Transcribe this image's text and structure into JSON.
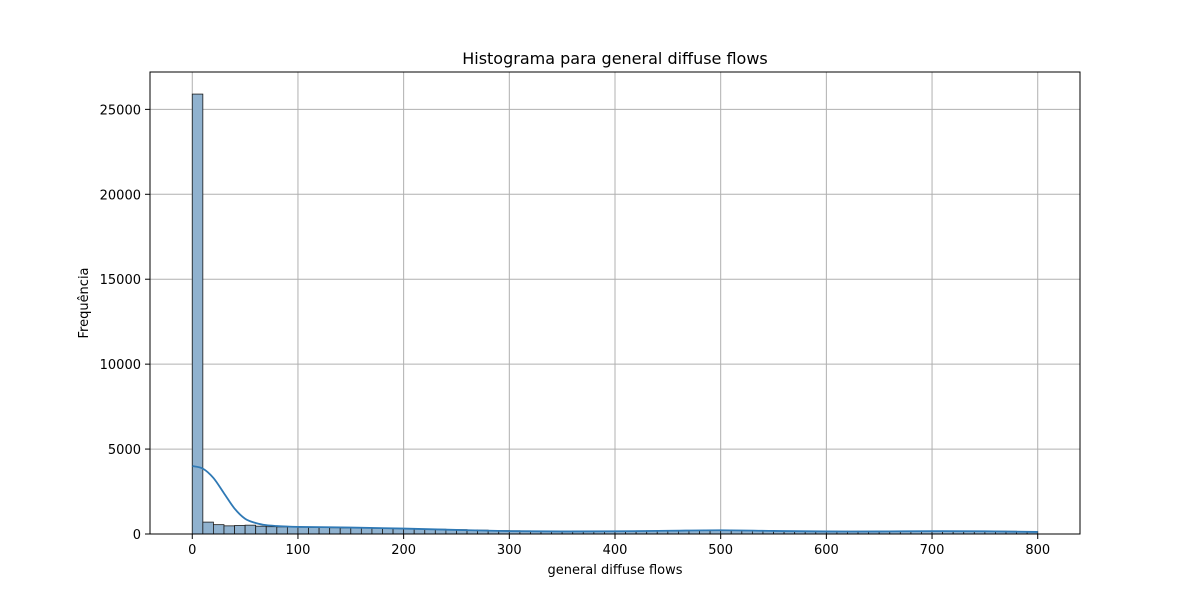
{
  "chart_data": {
    "type": "bar",
    "title": "Histograma para general diffuse flows",
    "xlabel": "general diffuse flows",
    "ylabel": "Frequência",
    "xlim": [
      -40,
      840
    ],
    "ylim": [
      0,
      27200
    ],
    "xticks": [
      0,
      100,
      200,
      300,
      400,
      500,
      600,
      700,
      800
    ],
    "yticks": [
      0,
      5000,
      10000,
      15000,
      20000,
      25000
    ],
    "grid": true,
    "bin_start": 0,
    "bin_width": 10,
    "bin_counts": [
      25900,
      700,
      550,
      480,
      500,
      520,
      460,
      430,
      420,
      410,
      400,
      390,
      380,
      370,
      360,
      355,
      350,
      340,
      330,
      320,
      310,
      300,
      290,
      280,
      270,
      255,
      240,
      225,
      210,
      200,
      190,
      185,
      180,
      175,
      170,
      170,
      170,
      170,
      170,
      175,
      180,
      180,
      185,
      190,
      195,
      200,
      205,
      210,
      210,
      210,
      205,
      200,
      195,
      190,
      185,
      180,
      175,
      170,
      170,
      165,
      165,
      160,
      160,
      160,
      160,
      160,
      160,
      165,
      165,
      170,
      170,
      175,
      175,
      175,
      175,
      170,
      165,
      160,
      150,
      140
    ],
    "kde": {
      "x": [
        0,
        10,
        20,
        30,
        40,
        50,
        60,
        70,
        80,
        90,
        100,
        150,
        200,
        250,
        300,
        350,
        400,
        450,
        500,
        550,
        600,
        650,
        700,
        750,
        800
      ],
      "y": [
        4000,
        3850,
        3300,
        2400,
        1500,
        900,
        650,
        520,
        470,
        440,
        420,
        380,
        320,
        240,
        170,
        150,
        160,
        190,
        220,
        180,
        150,
        150,
        170,
        160,
        120
      ]
    },
    "colors": {
      "bar_fill": "#90b2cf",
      "bar_edge": "#1a1a1a",
      "kde_line": "#2f79b5",
      "grid": "#b0b0b0"
    }
  }
}
